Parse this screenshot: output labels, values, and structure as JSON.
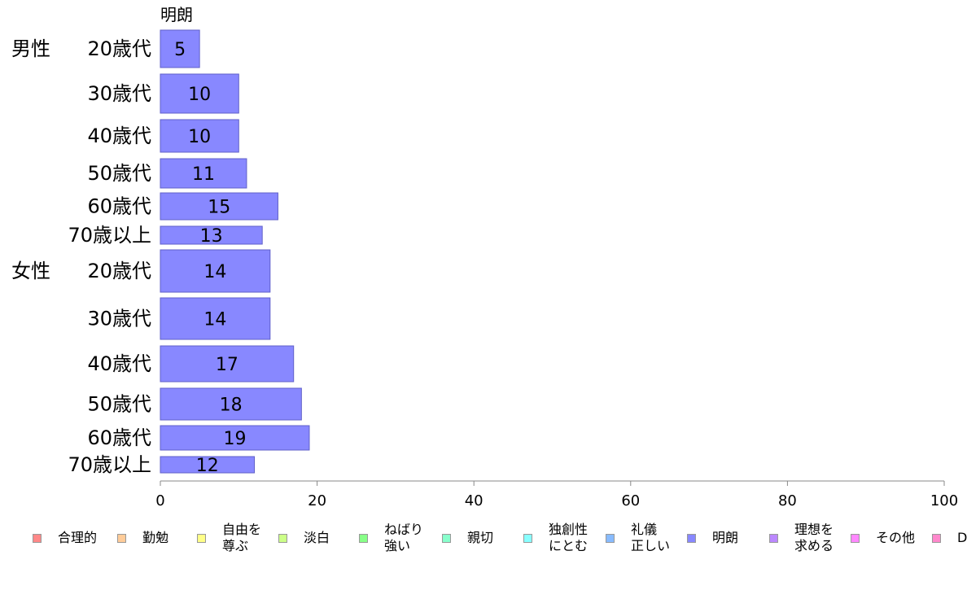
{
  "chart_data": {
    "type": "bar",
    "orientation": "horizontal",
    "series_label": "明朗",
    "categories": [
      {
        "group": "男性",
        "label": "20歳代"
      },
      {
        "group": "",
        "label": "30歳代"
      },
      {
        "group": "",
        "label": "40歳代"
      },
      {
        "group": "",
        "label": "50歳代"
      },
      {
        "group": "",
        "label": "60歳代"
      },
      {
        "group": "",
        "label": "70歳以上"
      },
      {
        "group": "女性",
        "label": "20歳代"
      },
      {
        "group": "",
        "label": "30歳代"
      },
      {
        "group": "",
        "label": "40歳代"
      },
      {
        "group": "",
        "label": "50歳代"
      },
      {
        "group": "",
        "label": "60歳代"
      },
      {
        "group": "",
        "label": "70歳以上"
      }
    ],
    "values": [
      5,
      10,
      10,
      11,
      15,
      13,
      14,
      14,
      17,
      18,
      19,
      12
    ],
    "data_labels": [
      "5",
      "10",
      "10",
      "11",
      "15",
      "13",
      "14",
      "14",
      "17",
      "18",
      "19",
      "12"
    ],
    "xlim": [
      0,
      100
    ],
    "xticks": [
      "0",
      "20",
      "40",
      "60",
      "80",
      "100"
    ],
    "bar_color": "#8888ff",
    "grid": false,
    "legend": {
      "placement": "bottom",
      "items": [
        {
          "label": "合理的",
          "color": "#ff8888"
        },
        {
          "label": "勤勉",
          "color": "#ffcc99"
        },
        {
          "label": "自由を\n尊ぶ",
          "color": "#ffff88"
        },
        {
          "label": "淡白",
          "color": "#ccff88"
        },
        {
          "label": "ねばり\n強い",
          "color": "#88ff88"
        },
        {
          "label": "親切",
          "color": "#88ffcc"
        },
        {
          "label": "独創性\nにとむ",
          "color": "#88ffff"
        },
        {
          "label": "礼儀\n正しい",
          "color": "#88bbff"
        },
        {
          "label": "明朗",
          "color": "#8888ff"
        },
        {
          "label": "理想を\n求める",
          "color": "#bb88ff"
        },
        {
          "label": "その他",
          "color": "#ff88ff"
        },
        {
          "label": "D",
          "color": "#ff88cc"
        }
      ]
    }
  }
}
